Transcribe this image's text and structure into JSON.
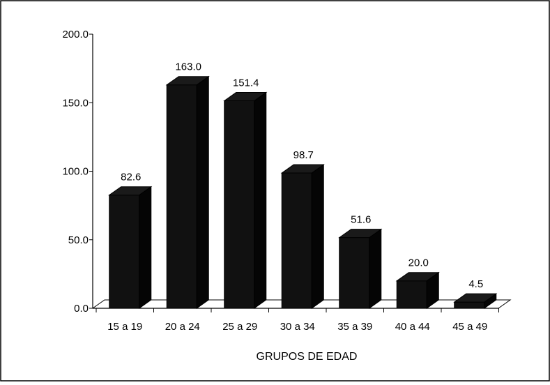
{
  "chart_data": {
    "type": "bar",
    "categories": [
      "15 a 19",
      "20 a 24",
      "25 a 29",
      "30 a 34",
      "35 a 39",
      "40 a 44",
      "45 a 49"
    ],
    "values": [
      82.6,
      163.0,
      151.4,
      98.7,
      51.6,
      20.0,
      4.5
    ],
    "value_labels": [
      "82.6",
      "163.0",
      "151.4",
      "98.7",
      "51.6",
      "20.0",
      "4.5"
    ],
    "title": "",
    "xlabel": "GRUPOS DE EDAD",
    "ylabel": "",
    "ylim": [
      0,
      200
    ],
    "yticks": [
      0,
      50,
      100,
      150,
      200
    ],
    "ytick_labels": [
      "0.0",
      "50.0",
      "100.0",
      "150.0",
      "200.0"
    ],
    "grid": false,
    "bar_style": "3d",
    "bar_color": "#111111"
  }
}
